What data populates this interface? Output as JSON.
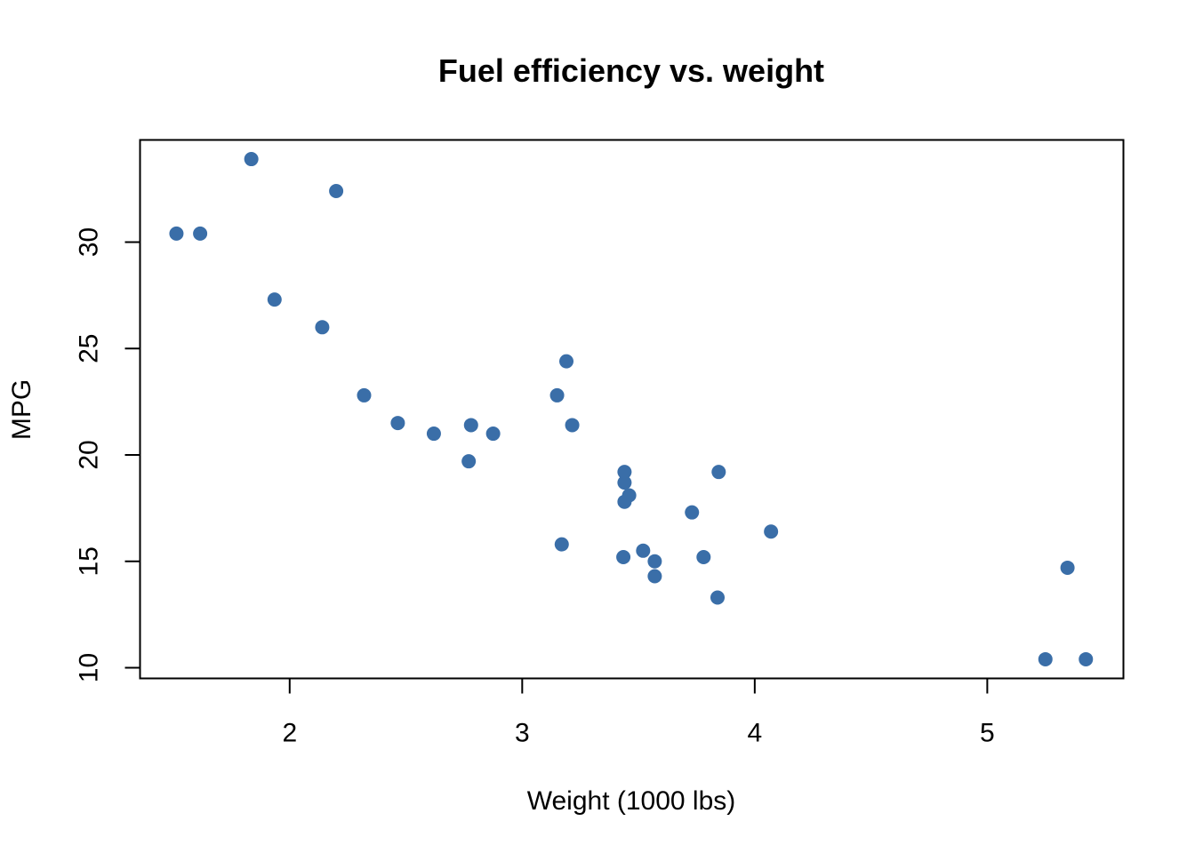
{
  "chart_data": {
    "type": "scatter",
    "title": "Fuel efficiency vs. weight",
    "xlabel": "Weight (1000 lbs)",
    "ylabel": "MPG",
    "xlim": [
      1.3565,
      5.5855
    ],
    "ylim": [
      9.5,
      34.8
    ],
    "xticks": [
      2,
      3,
      4,
      5
    ],
    "yticks": [
      10,
      15,
      20,
      25,
      30
    ],
    "grid": false,
    "point_color": "#3A6EA8",
    "points": [
      {
        "x": 2.62,
        "y": 21.0
      },
      {
        "x": 2.875,
        "y": 21.0
      },
      {
        "x": 2.32,
        "y": 22.8
      },
      {
        "x": 3.215,
        "y": 21.4
      },
      {
        "x": 3.44,
        "y": 18.7
      },
      {
        "x": 3.46,
        "y": 18.1
      },
      {
        "x": 3.57,
        "y": 14.3
      },
      {
        "x": 3.19,
        "y": 24.4
      },
      {
        "x": 3.15,
        "y": 22.8
      },
      {
        "x": 3.44,
        "y": 19.2
      },
      {
        "x": 3.44,
        "y": 17.8
      },
      {
        "x": 4.07,
        "y": 16.4
      },
      {
        "x": 3.73,
        "y": 17.3
      },
      {
        "x": 3.78,
        "y": 15.2
      },
      {
        "x": 5.25,
        "y": 10.4
      },
      {
        "x": 5.424,
        "y": 10.4
      },
      {
        "x": 5.345,
        "y": 14.7
      },
      {
        "x": 2.2,
        "y": 32.4
      },
      {
        "x": 1.615,
        "y": 30.4
      },
      {
        "x": 1.835,
        "y": 33.9
      },
      {
        "x": 2.465,
        "y": 21.5
      },
      {
        "x": 3.52,
        "y": 15.5
      },
      {
        "x": 3.435,
        "y": 15.2
      },
      {
        "x": 3.84,
        "y": 13.3
      },
      {
        "x": 3.845,
        "y": 19.2
      },
      {
        "x": 1.935,
        "y": 27.3
      },
      {
        "x": 2.14,
        "y": 26.0
      },
      {
        "x": 1.513,
        "y": 30.4
      },
      {
        "x": 3.17,
        "y": 15.8
      },
      {
        "x": 2.77,
        "y": 19.7
      },
      {
        "x": 3.57,
        "y": 15.0
      },
      {
        "x": 2.78,
        "y": 21.4
      }
    ]
  }
}
